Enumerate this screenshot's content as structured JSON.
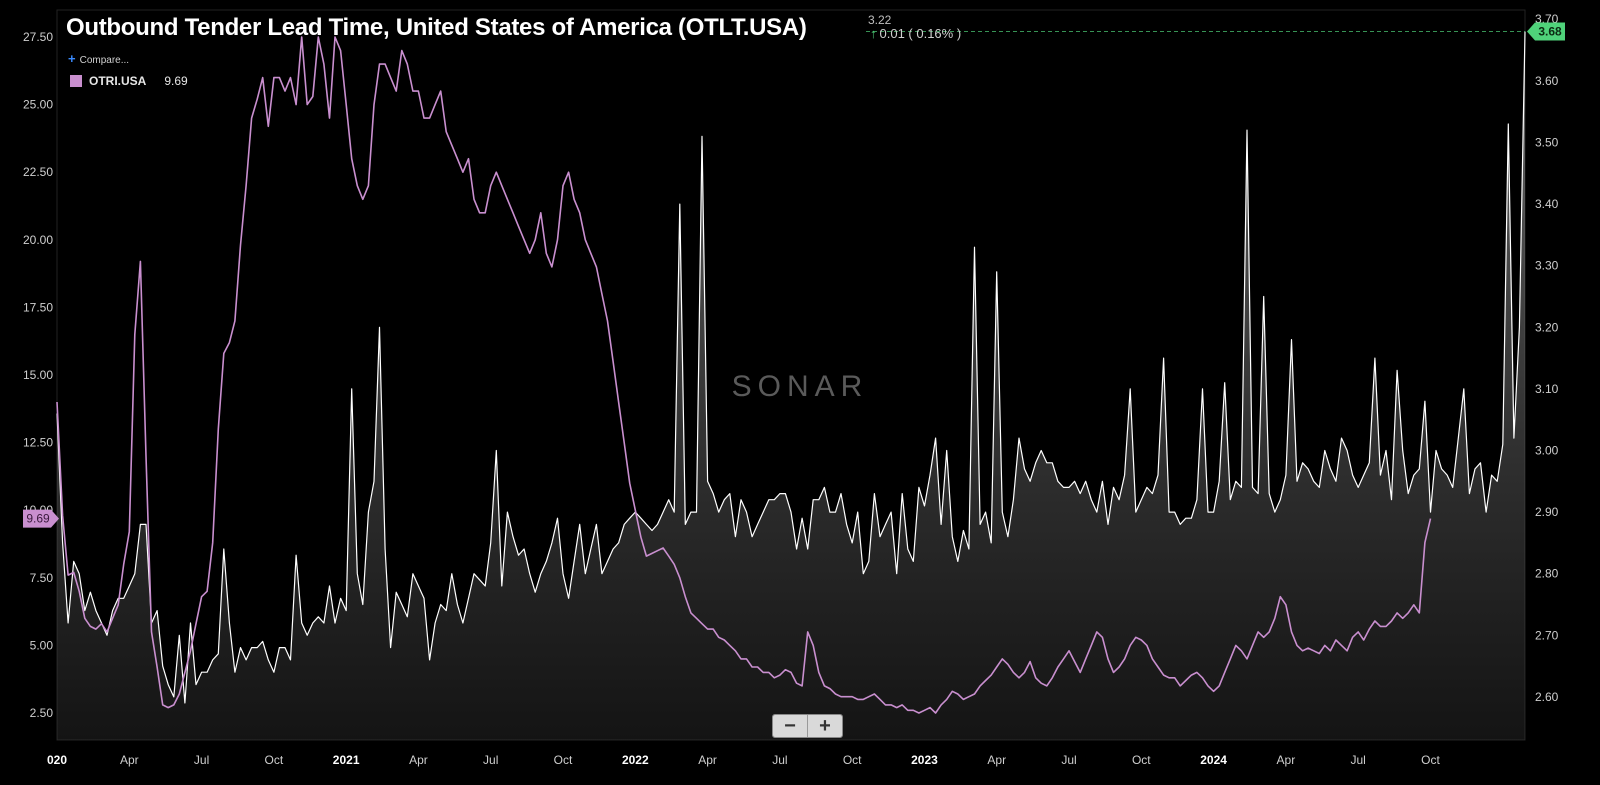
{
  "header": {
    "title": "Outbound Tender Lead Time, United States of America (OTLT.USA)",
    "last_value": "3.22",
    "change_text": "0.01 ( 0.16% )",
    "compare_label": "Compare..."
  },
  "legend": {
    "series_label": "OTRI.USA",
    "series_value": "9.69"
  },
  "zoom": {
    "minus_label": "−",
    "plus_label": "+"
  },
  "colors": {
    "otlt": "#ffffff",
    "otri": "#c98fcf",
    "accent_green": "#4fd27a"
  },
  "watermark": "SONAR",
  "chart_data": {
    "type": "line",
    "x_start": "2020-01",
    "x_step": "weekly",
    "x_tick_labels": [
      "020",
      "Apr",
      "Jul",
      "Oct",
      "2021",
      "Apr",
      "Jul",
      "Oct",
      "2022",
      "Apr",
      "Jul",
      "Oct",
      "2023",
      "Apr",
      "Jul",
      "Oct",
      "2024",
      "Apr",
      "Jul",
      "Oct"
    ],
    "y_left": {
      "ticks": [
        "2.50",
        "5.00",
        "7.50",
        "10.00",
        "12.50",
        "15.00",
        "17.50",
        "20.00",
        "22.50",
        "25.00",
        "27.50"
      ],
      "range": [
        1.5,
        28.5
      ]
    },
    "y_right": {
      "ticks": [
        "2.60",
        "2.70",
        "2.80",
        "2.90",
        "3.00",
        "3.10",
        "3.20",
        "3.30",
        "3.40",
        "3.50",
        "3.60",
        "3.70"
      ],
      "range": [
        2.53,
        3.715
      ]
    },
    "right_marker": "3.68",
    "left_marker": "9.69",
    "grid": false,
    "series": [
      {
        "name": "OTRI.USA",
        "axis": "left",
        "values": [
          14.0,
          9.8,
          7.6,
          7.7,
          7.0,
          6.0,
          5.7,
          5.6,
          5.8,
          5.5,
          6.0,
          6.5,
          8.0,
          9.2,
          16.5,
          19.2,
          12.0,
          5.5,
          4.2,
          2.8,
          2.7,
          2.8,
          3.2,
          4.0,
          4.8,
          5.8,
          6.8,
          7.0,
          8.8,
          13.0,
          15.8,
          16.2,
          17.0,
          19.8,
          22.0,
          24.5,
          25.2,
          26.0,
          24.2,
          26.0,
          26.0,
          25.5,
          26.0,
          25.0,
          27.5,
          25.0,
          25.3,
          27.5,
          26.5,
          24.5,
          27.5,
          27.0,
          25.0,
          23.0,
          22.0,
          21.5,
          22.0,
          25.0,
          26.5,
          26.5,
          26.0,
          25.5,
          27.0,
          26.5,
          25.5,
          25.5,
          24.5,
          24.5,
          25.0,
          25.5,
          24.0,
          23.5,
          23.0,
          22.5,
          23.0,
          21.5,
          21.0,
          21.0,
          22.0,
          22.5,
          22.0,
          21.5,
          21.0,
          20.5,
          20.0,
          19.5,
          20.0,
          21.0,
          19.5,
          19.0,
          20.0,
          22.0,
          22.5,
          21.5,
          21.0,
          20.0,
          19.5,
          19.0,
          18.0,
          17.0,
          15.5,
          14.0,
          12.5,
          11.0,
          10.0,
          9.0,
          8.3,
          8.4,
          8.5,
          8.6,
          8.3,
          8.0,
          7.5,
          6.8,
          6.2,
          6.0,
          5.8,
          5.6,
          5.6,
          5.3,
          5.2,
          5.0,
          4.8,
          4.5,
          4.5,
          4.2,
          4.2,
          4.0,
          4.0,
          3.8,
          3.9,
          4.1,
          4.0,
          3.6,
          3.5,
          5.5,
          5.0,
          4.0,
          3.5,
          3.4,
          3.2,
          3.1,
          3.1,
          3.1,
          3.0,
          3.0,
          3.1,
          3.2,
          3.0,
          2.8,
          2.8,
          2.7,
          2.8,
          2.6,
          2.6,
          2.5,
          2.6,
          2.7,
          2.5,
          2.8,
          3.0,
          3.3,
          3.2,
          3.0,
          3.1,
          3.2,
          3.5,
          3.7,
          3.9,
          4.2,
          4.5,
          4.3,
          4.0,
          3.8,
          4.0,
          4.4,
          3.8,
          3.6,
          3.5,
          3.8,
          4.2,
          4.5,
          4.8,
          4.4,
          4.0,
          4.5,
          5.0,
          5.5,
          5.3,
          4.5,
          4.0,
          4.2,
          4.5,
          5.0,
          5.3,
          5.2,
          5.0,
          4.5,
          4.2,
          3.9,
          3.8,
          3.8,
          3.5,
          3.7,
          3.9,
          4.0,
          3.8,
          3.5,
          3.3,
          3.5,
          4.0,
          4.5,
          5.0,
          4.8,
          4.5,
          5.0,
          5.5,
          5.3,
          5.5,
          6.0,
          6.8,
          6.5,
          5.5,
          5.0,
          4.8,
          4.9,
          4.8,
          4.7,
          5.0,
          4.8,
          5.2,
          5.0,
          4.8,
          5.3,
          5.5,
          5.2,
          5.6,
          5.9,
          5.7,
          5.7,
          5.9,
          6.2,
          6.0,
          6.2,
          6.5,
          6.2,
          8.8,
          9.69
        ]
      },
      {
        "name": "OTLT.USA",
        "axis": "right",
        "values": [
          3.06,
          2.85,
          2.72,
          2.82,
          2.8,
          2.74,
          2.77,
          2.74,
          2.72,
          2.7,
          2.74,
          2.76,
          2.76,
          2.78,
          2.8,
          2.88,
          2.88,
          2.72,
          2.74,
          2.65,
          2.62,
          2.6,
          2.7,
          2.59,
          2.72,
          2.62,
          2.64,
          2.64,
          2.66,
          2.67,
          2.84,
          2.72,
          2.64,
          2.68,
          2.66,
          2.68,
          2.68,
          2.69,
          2.66,
          2.64,
          2.68,
          2.68,
          2.66,
          2.83,
          2.72,
          2.7,
          2.72,
          2.73,
          2.72,
          2.78,
          2.72,
          2.76,
          2.74,
          3.1,
          2.8,
          2.75,
          2.9,
          2.95,
          3.2,
          2.84,
          2.68,
          2.77,
          2.75,
          2.73,
          2.8,
          2.78,
          2.76,
          2.66,
          2.72,
          2.75,
          2.74,
          2.8,
          2.75,
          2.72,
          2.76,
          2.8,
          2.79,
          2.78,
          2.85,
          3.0,
          2.78,
          2.9,
          2.86,
          2.83,
          2.84,
          2.8,
          2.77,
          2.8,
          2.82,
          2.85,
          2.89,
          2.8,
          2.76,
          2.82,
          2.88,
          2.8,
          2.84,
          2.88,
          2.8,
          2.82,
          2.84,
          2.85,
          2.88,
          2.89,
          2.9,
          2.89,
          2.88,
          2.87,
          2.88,
          2.9,
          2.92,
          2.9,
          3.4,
          2.88,
          2.9,
          2.9,
          3.51,
          2.95,
          2.93,
          2.9,
          2.92,
          2.93,
          2.86,
          2.92,
          2.9,
          2.86,
          2.88,
          2.9,
          2.92,
          2.92,
          2.93,
          2.93,
          2.9,
          2.84,
          2.89,
          2.84,
          2.92,
          2.92,
          2.94,
          2.9,
          2.9,
          2.93,
          2.88,
          2.85,
          2.9,
          2.8,
          2.82,
          2.93,
          2.86,
          2.88,
          2.9,
          2.8,
          2.93,
          2.84,
          2.82,
          2.94,
          2.91,
          2.96,
          3.02,
          2.88,
          3.0,
          2.86,
          2.82,
          2.87,
          2.84,
          3.33,
          2.88,
          2.9,
          2.85,
          3.29,
          2.9,
          2.86,
          2.92,
          3.02,
          2.97,
          2.95,
          2.98,
          3.0,
          2.98,
          2.98,
          2.95,
          2.94,
          2.94,
          2.95,
          2.93,
          2.95,
          2.92,
          2.9,
          2.95,
          2.88,
          2.94,
          2.92,
          2.96,
          3.1,
          2.9,
          2.92,
          2.94,
          2.93,
          2.96,
          3.15,
          2.9,
          2.9,
          2.88,
          2.89,
          2.89,
          2.92,
          3.1,
          2.9,
          2.9,
          2.95,
          3.11,
          2.92,
          2.95,
          2.94,
          3.52,
          2.94,
          2.93,
          3.25,
          2.93,
          2.9,
          2.92,
          2.96,
          3.18,
          2.95,
          2.98,
          2.97,
          2.95,
          2.94,
          3.0,
          2.97,
          2.95,
          3.02,
          3.0,
          2.96,
          2.94,
          2.96,
          2.98,
          3.15,
          2.96,
          3.0,
          2.92,
          3.13,
          3.0,
          2.93,
          2.96,
          2.97,
          3.08,
          2.9,
          3.0,
          2.97,
          2.96,
          2.94,
          3.02,
          3.1,
          2.93,
          2.97,
          2.98,
          2.9,
          2.96,
          2.95,
          3.01,
          3.53,
          3.02,
          3.2,
          3.68
        ]
      }
    ]
  }
}
